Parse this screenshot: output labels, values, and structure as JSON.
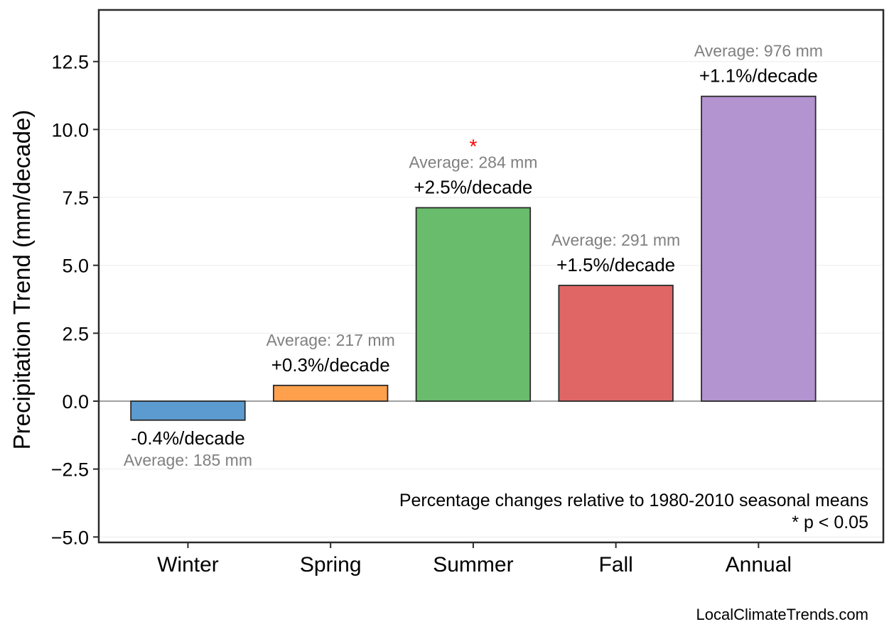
{
  "chart_data": {
    "type": "bar",
    "ylabel": "Precipitation Trend (mm/decade)",
    "ylim": [
      -5.2,
      14.4
    ],
    "yticks": [
      -5.0,
      -2.5,
      0.0,
      2.5,
      5.0,
      7.5,
      10.0,
      12.5
    ],
    "ytick_labels": [
      "−5.0",
      "−2.5",
      "0.0",
      "2.5",
      "5.0",
      "7.5",
      "10.0",
      "12.5"
    ],
    "grid": "horizontal, light",
    "categories": [
      "Winter",
      "Spring",
      "Summer",
      "Fall",
      "Annual"
    ],
    "values": [
      -0.7,
      0.58,
      7.12,
      4.26,
      11.22
    ],
    "colors": [
      "#5b9bd0",
      "#ffa04d",
      "#69bc6b",
      "#e06666",
      "#b393d0"
    ],
    "pct_labels": [
      "-0.4%/decade",
      "+0.3%/decade",
      "+2.5%/decade",
      "+1.5%/decade",
      "+1.1%/decade"
    ],
    "avg_labels": [
      "Average: 185 mm",
      "Average: 217 mm",
      "Average: 284 mm",
      "Average: 291 mm",
      "Average: 976 mm"
    ],
    "significant": [
      false,
      false,
      true,
      false,
      false
    ],
    "significance_marker": "*",
    "annotations": [
      "Percentage changes relative to 1980-2010 seasonal means",
      "* p < 0.05"
    ]
  },
  "footer": "LocalClimateTrends.com"
}
